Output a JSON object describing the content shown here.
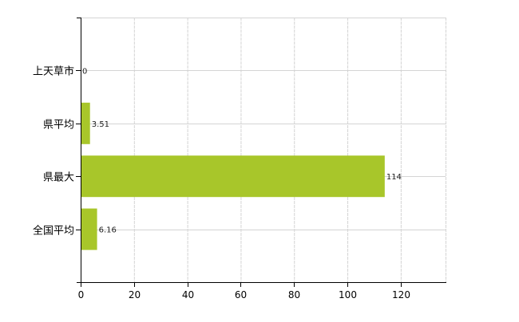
{
  "chart_data": {
    "type": "bar",
    "orientation": "horizontal",
    "categories": [
      "上天草市",
      "県平均",
      "県最大",
      "全国平均"
    ],
    "values": [
      0,
      3.51,
      114,
      6.16
    ],
    "data_labels": [
      "0",
      "3.51",
      "114",
      "6.16"
    ],
    "xlim": [
      0,
      136.8
    ],
    "xticks": [
      0,
      20,
      40,
      60,
      80,
      100,
      120
    ],
    "title": "",
    "xlabel": "",
    "ylabel": "",
    "grid": true,
    "colors": {
      "bar": "#a8c62a",
      "grid": "#d4d4d4",
      "axis": "#000000",
      "label": "#222222"
    }
  }
}
